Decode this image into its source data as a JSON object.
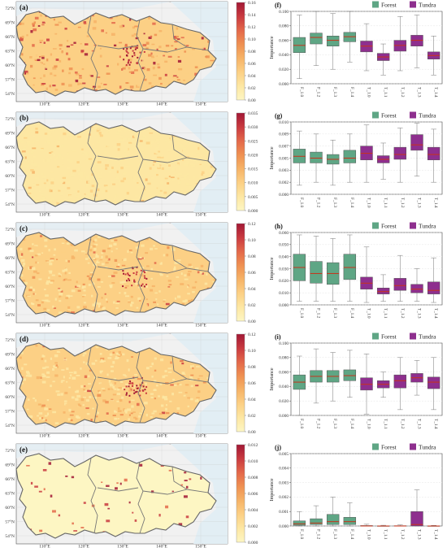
{
  "colors": {
    "forest": "#5fa685",
    "tundra": "#8e2f8e",
    "median": "#c8331a",
    "sea": "#e2eef4",
    "land_bg": "#f1f1f1",
    "cmap": [
      "#fdf6c3",
      "#fde7a3",
      "#fcd085",
      "#f6b367",
      "#ef9152",
      "#e3684a",
      "#c93a40",
      "#a21835"
    ]
  },
  "map_labels": {
    "lat": [
      "72°N",
      "69°N",
      "66°N",
      "63°N",
      "60°N",
      "57°N",
      "54°N"
    ],
    "lon": [
      "110°E",
      "120°E",
      "130°E",
      "140°E",
      "150°E"
    ]
  },
  "maps": [
    {
      "label": "(a)",
      "ticks": [
        "0.16",
        "0.14",
        "0.12",
        "0.10",
        "0.08",
        "0.06",
        "0.04",
        "0.02",
        "0.00"
      ],
      "style": "strong"
    },
    {
      "label": "(b)",
      "ticks": [
        "0.035",
        "0.030",
        "0.025",
        "0.020",
        "0.015",
        "0.010",
        "0.005",
        "0.000"
      ],
      "style": "pale"
    },
    {
      "label": "(c)",
      "ticks": [
        "0.12",
        "0.10",
        "0.08",
        "0.06",
        "0.04",
        "0.02",
        "0.00"
      ],
      "style": "medium"
    },
    {
      "label": "(d)",
      "ticks": [
        "0.12",
        "0.10",
        "0.08",
        "0.06",
        "0.04",
        "0.02",
        "0.00"
      ],
      "style": "medium"
    },
    {
      "label": "(e)",
      "ticks": [
        "0.012",
        "0.010",
        "0.008",
        "0.006",
        "0.004",
        "0.002",
        "0.000"
      ],
      "style": "faint"
    }
  ],
  "legend": {
    "forest": "Forest",
    "tundra": "Tundra"
  },
  "chart_data": [
    {
      "type": "box",
      "panel": "(f)",
      "ylabel": "Importance",
      "ylim": [
        0,
        0.1
      ],
      "yticks": [
        "0.000",
        "0.020",
        "0.040",
        "0.060",
        "0.080",
        "0.100"
      ],
      "categories": [
        "F_1.0",
        "F_1.2",
        "F_1.3",
        "F_1.4",
        "T_1.0",
        "T_1.1",
        "T_1.2",
        "T_1.3",
        "T_1.4"
      ],
      "groups": [
        "forest",
        "forest",
        "forest",
        "forest",
        "tundra",
        "tundra",
        "tundra",
        "tundra",
        "tundra"
      ],
      "boxes": [
        {
          "min": 0.007,
          "q1": 0.043,
          "median": 0.053,
          "q3": 0.064,
          "max": 0.095
        },
        {
          "min": 0.025,
          "q1": 0.055,
          "median": 0.064,
          "q3": 0.07,
          "max": 0.1
        },
        {
          "min": 0.02,
          "q1": 0.052,
          "median": 0.06,
          "q3": 0.066,
          "max": 0.097
        },
        {
          "min": 0.03,
          "q1": 0.058,
          "median": 0.065,
          "q3": 0.071,
          "max": 0.1
        },
        {
          "min": 0.018,
          "q1": 0.044,
          "median": 0.052,
          "q3": 0.059,
          "max": 0.083
        },
        {
          "min": 0.012,
          "q1": 0.032,
          "median": 0.037,
          "q3": 0.042,
          "max": 0.055
        },
        {
          "min": 0.018,
          "q1": 0.045,
          "median": 0.053,
          "q3": 0.06,
          "max": 0.093
        },
        {
          "min": 0.022,
          "q1": 0.052,
          "median": 0.06,
          "q3": 0.067,
          "max": 0.095
        },
        {
          "min": 0.012,
          "q1": 0.034,
          "median": 0.039,
          "q3": 0.044,
          "max": 0.066
        }
      ]
    },
    {
      "type": "box",
      "panel": "(g)",
      "ylabel": "Importance",
      "ylim": [
        0,
        0.012
      ],
      "yticks": [
        "0.000",
        "0.002",
        "0.003",
        "0.005",
        "0.007",
        "0.009",
        "0.010"
      ],
      "categories": [
        "F_1.0",
        "F_1.2",
        "F_1.3",
        "F_1.4",
        "T_1.0",
        "T_1.1",
        "T_1.2",
        "T_1.3",
        "T_1.4"
      ],
      "groups": [
        "forest",
        "forest",
        "forest",
        "forest",
        "tundra",
        "tundra",
        "tundra",
        "tundra",
        "tundra"
      ],
      "boxes": [
        {
          "min": 0.0015,
          "q1": 0.0052,
          "median": 0.0063,
          "q3": 0.0075,
          "max": 0.0105
        },
        {
          "min": 0.002,
          "q1": 0.0052,
          "median": 0.006,
          "q3": 0.007,
          "max": 0.01
        },
        {
          "min": 0.0015,
          "q1": 0.005,
          "median": 0.0058,
          "q3": 0.0066,
          "max": 0.009
        },
        {
          "min": 0.002,
          "q1": 0.0052,
          "median": 0.006,
          "q3": 0.0073,
          "max": 0.01
        },
        {
          "min": 0.002,
          "q1": 0.0057,
          "median": 0.0068,
          "q3": 0.008,
          "max": 0.0115
        },
        {
          "min": 0.0025,
          "q1": 0.0052,
          "median": 0.0058,
          "q3": 0.0064,
          "max": 0.0085
        },
        {
          "min": 0.002,
          "q1": 0.0058,
          "median": 0.0066,
          "q3": 0.0078,
          "max": 0.011
        },
        {
          "min": 0.003,
          "q1": 0.0073,
          "median": 0.0082,
          "q3": 0.0099,
          "max": 0.0118
        },
        {
          "min": 0.002,
          "q1": 0.0057,
          "median": 0.0066,
          "q3": 0.0078,
          "max": 0.0108
        }
      ]
    },
    {
      "type": "box",
      "panel": "(h)",
      "ylabel": "Importance",
      "ylim": [
        0,
        0.06
      ],
      "yticks": [
        "0.000",
        "0.010",
        "0.020",
        "0.030",
        "0.040",
        "0.050",
        "0.060"
      ],
      "categories": [
        "F_1.0",
        "F_1.2",
        "F_1.3",
        "F_1.4",
        "T_1.0",
        "T_1.1",
        "T_1.2",
        "T_1.3",
        "T_1.4"
      ],
      "groups": [
        "forest",
        "forest",
        "forest",
        "forest",
        "tundra",
        "tundra",
        "tundra",
        "tundra",
        "tundra"
      ],
      "boxes": [
        {
          "min": 0.003,
          "q1": 0.02,
          "median": 0.031,
          "q3": 0.042,
          "max": 0.058
        },
        {
          "min": 0.003,
          "q1": 0.018,
          "median": 0.026,
          "q3": 0.036,
          "max": 0.057
        },
        {
          "min": 0.003,
          "q1": 0.017,
          "median": 0.026,
          "q3": 0.035,
          "max": 0.055
        },
        {
          "min": 0.003,
          "q1": 0.021,
          "median": 0.031,
          "q3": 0.042,
          "max": 0.058
        },
        {
          "min": 0.002,
          "q1": 0.013,
          "median": 0.018,
          "q3": 0.023,
          "max": 0.048
        },
        {
          "min": 0.003,
          "q1": 0.009,
          "median": 0.011,
          "q3": 0.014,
          "max": 0.025
        },
        {
          "min": 0.003,
          "q1": 0.012,
          "median": 0.016,
          "q3": 0.022,
          "max": 0.041
        },
        {
          "min": 0.003,
          "q1": 0.01,
          "median": 0.013,
          "q3": 0.017,
          "max": 0.03
        },
        {
          "min": 0.002,
          "q1": 0.009,
          "median": 0.012,
          "q3": 0.019,
          "max": 0.039
        }
      ]
    },
    {
      "type": "box",
      "panel": "(i)",
      "ylabel": "Importance",
      "ylim": [
        0,
        0.1
      ],
      "yticks": [
        "0.000",
        "0.020",
        "0.040",
        "0.060",
        "0.080",
        "0.100"
      ],
      "categories": [
        "F_1.0",
        "F_1.2",
        "F_1.3",
        "F_1.4",
        "T_1.0",
        "T_1.1",
        "T_1.2",
        "T_1.3",
        "T_1.4"
      ],
      "groups": [
        "forest",
        "forest",
        "forest",
        "forest",
        "tundra",
        "tundra",
        "tundra",
        "tundra",
        "tundra"
      ],
      "boxes": [
        {
          "min": 0.0,
          "q1": 0.036,
          "median": 0.046,
          "q3": 0.056,
          "max": 0.082
        },
        {
          "min": 0.017,
          "q1": 0.046,
          "median": 0.054,
          "q3": 0.062,
          "max": 0.092
        },
        {
          "min": 0.02,
          "q1": 0.046,
          "median": 0.054,
          "q3": 0.062,
          "max": 0.087
        },
        {
          "min": 0.025,
          "q1": 0.048,
          "median": 0.055,
          "q3": 0.063,
          "max": 0.09
        },
        {
          "min": 0.002,
          "q1": 0.035,
          "median": 0.043,
          "q3": 0.052,
          "max": 0.085
        },
        {
          "min": 0.025,
          "q1": 0.038,
          "median": 0.043,
          "q3": 0.048,
          "max": 0.06
        },
        {
          "min": 0.008,
          "q1": 0.038,
          "median": 0.048,
          "q3": 0.056,
          "max": 0.08
        },
        {
          "min": 0.028,
          "q1": 0.046,
          "median": 0.052,
          "q3": 0.058,
          "max": 0.076
        },
        {
          "min": 0.008,
          "q1": 0.037,
          "median": 0.046,
          "q3": 0.053,
          "max": 0.08
        }
      ]
    },
    {
      "type": "box",
      "panel": "(j)",
      "ylabel": "Importance",
      "ylim": [
        0,
        0.005
      ],
      "yticks": [
        "0.000",
        "0.001",
        "0.002",
        "0.003",
        "0.004",
        "0.005"
      ],
      "categories": [
        "F_1.0",
        "F_1.2",
        "F_1.3",
        "F_1.4",
        "T_1.0",
        "T_1.1",
        "T_1.2",
        "T_1.3",
        "T_1.4"
      ],
      "groups": [
        "forest",
        "forest",
        "forest",
        "forest",
        "tundra",
        "tundra",
        "tundra",
        "tundra",
        "tundra"
      ],
      "boxes": [
        {
          "min": 0.0,
          "q1": 5e-05,
          "median": 0.00015,
          "q3": 0.00035,
          "max": 0.001
        },
        {
          "min": 0.0,
          "q1": 0.0001,
          "median": 0.0002,
          "q3": 0.0005,
          "max": 0.0014
        },
        {
          "min": 0.0,
          "q1": 0.0001,
          "median": 0.0003,
          "q3": 0.0008,
          "max": 0.002
        },
        {
          "min": 0.0,
          "q1": 0.0001,
          "median": 0.0003,
          "q3": 0.0006,
          "max": 0.0016
        },
        {
          "min": 0.0,
          "q1": 0.0,
          "median": 0.0,
          "q3": 3e-05,
          "max": 0.00012
        },
        {
          "min": 0.0,
          "q1": 0.0,
          "median": 0.0,
          "q3": 1e-05,
          "max": 5e-05
        },
        {
          "min": 0.0,
          "q1": 0.0,
          "median": 0.0,
          "q3": 2e-05,
          "max": 8e-05
        },
        {
          "min": 0.0,
          "q1": 0.0,
          "median": 0.0001,
          "q3": 0.001,
          "max": 0.0025
        },
        {
          "min": 0.0,
          "q1": 0.0,
          "median": 0.0,
          "q3": 1e-05,
          "max": 4e-05
        }
      ]
    }
  ]
}
